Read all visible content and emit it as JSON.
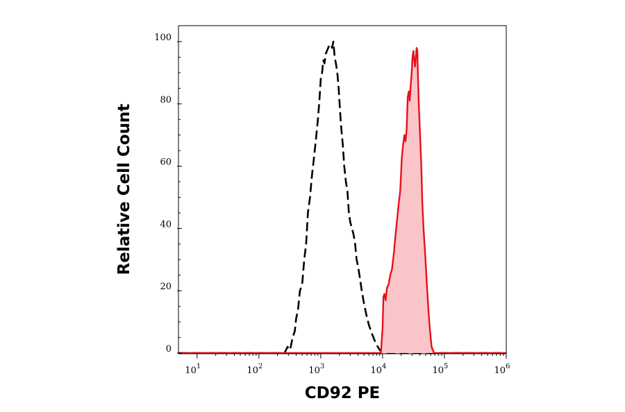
{
  "chart_data": {
    "type": "area",
    "title": "",
    "xlabel": "CD92 PE",
    "ylabel": "Relative Cell Count",
    "x_scale": "log",
    "xlim": [
      5,
      1000000
    ],
    "ylim": [
      0,
      100
    ],
    "x_ticks": [
      {
        "base": "10",
        "exp": "1"
      },
      {
        "base": "10",
        "exp": "2"
      },
      {
        "base": "10",
        "exp": "3"
      },
      {
        "base": "10",
        "exp": "4"
      },
      {
        "base": "10",
        "exp": "5"
      },
      {
        "base": "10",
        "exp": "6"
      }
    ],
    "y_ticks": [
      "0",
      "20",
      "40",
      "60",
      "80",
      "100"
    ],
    "grid": false,
    "legend": "none",
    "series": [
      {
        "style": "dashed",
        "color": "#000000",
        "fill": "none",
        "points": [
          [
            5,
            0
          ],
          [
            260,
            0
          ],
          [
            290,
            2
          ],
          [
            320,
            1
          ],
          [
            350,
            5
          ],
          [
            380,
            7
          ],
          [
            400,
            11
          ],
          [
            430,
            14
          ],
          [
            460,
            20
          ],
          [
            500,
            22
          ],
          [
            540,
            30
          ],
          [
            580,
            35
          ],
          [
            620,
            45
          ],
          [
            670,
            50
          ],
          [
            720,
            57
          ],
          [
            780,
            63
          ],
          [
            840,
            69
          ],
          [
            900,
            75
          ],
          [
            950,
            81
          ],
          [
            1000,
            88
          ],
          [
            1050,
            90
          ],
          [
            1100,
            94
          ],
          [
            1150,
            93
          ],
          [
            1200,
            96
          ],
          [
            1260,
            97
          ],
          [
            1320,
            98
          ],
          [
            1380,
            99
          ],
          [
            1450,
            99
          ],
          [
            1520,
            98
          ],
          [
            1600,
            100
          ],
          [
            1680,
            95
          ],
          [
            1760,
            93
          ],
          [
            1850,
            90
          ],
          [
            1950,
            85
          ],
          [
            2050,
            78
          ],
          [
            2150,
            72
          ],
          [
            2270,
            67
          ],
          [
            2400,
            60
          ],
          [
            2550,
            55
          ],
          [
            2700,
            52
          ],
          [
            2850,
            45
          ],
          [
            3000,
            42
          ],
          [
            3200,
            40
          ],
          [
            3400,
            38
          ],
          [
            3600,
            35
          ],
          [
            3800,
            30
          ],
          [
            4000,
            28
          ],
          [
            4300,
            24
          ],
          [
            4600,
            20
          ],
          [
            5000,
            16
          ],
          [
            5500,
            12
          ],
          [
            6000,
            9
          ],
          [
            6800,
            6
          ],
          [
            7800,
            3
          ],
          [
            9000,
            1
          ],
          [
            10000,
            0
          ],
          [
            1000000,
            0
          ]
        ]
      },
      {
        "style": "solid",
        "color": "#e8101a",
        "fill": "#f9c5c8",
        "points": [
          [
            5,
            0
          ],
          [
            9400,
            0
          ],
          [
            10000,
            8
          ],
          [
            10300,
            18
          ],
          [
            10700,
            19
          ],
          [
            11200,
            17
          ],
          [
            11800,
            21
          ],
          [
            12500,
            22
          ],
          [
            13300,
            25
          ],
          [
            14200,
            27
          ],
          [
            15200,
            32
          ],
          [
            16200,
            38
          ],
          [
            17200,
            43
          ],
          [
            18200,
            48
          ],
          [
            19300,
            52
          ],
          [
            20500,
            63
          ],
          [
            21500,
            67
          ],
          [
            22500,
            70
          ],
          [
            23500,
            68
          ],
          [
            24500,
            72
          ],
          [
            25500,
            82
          ],
          [
            26500,
            84
          ],
          [
            27500,
            81
          ],
          [
            28500,
            86
          ],
          [
            29500,
            90
          ],
          [
            30500,
            95
          ],
          [
            31500,
            97
          ],
          [
            32500,
            94
          ],
          [
            33500,
            92
          ],
          [
            34500,
            95
          ],
          [
            35500,
            98
          ],
          [
            36500,
            97
          ],
          [
            37500,
            88
          ],
          [
            38500,
            80
          ],
          [
            40000,
            72
          ],
          [
            42000,
            62
          ],
          [
            44000,
            48
          ],
          [
            46000,
            40
          ],
          [
            48000,
            34
          ],
          [
            50000,
            28
          ],
          [
            52000,
            22
          ],
          [
            54000,
            17
          ],
          [
            56000,
            12
          ],
          [
            58000,
            8
          ],
          [
            60000,
            5
          ],
          [
            62000,
            2
          ],
          [
            65000,
            1
          ],
          [
            68000,
            0
          ],
          [
            1000000,
            0
          ]
        ]
      }
    ]
  }
}
